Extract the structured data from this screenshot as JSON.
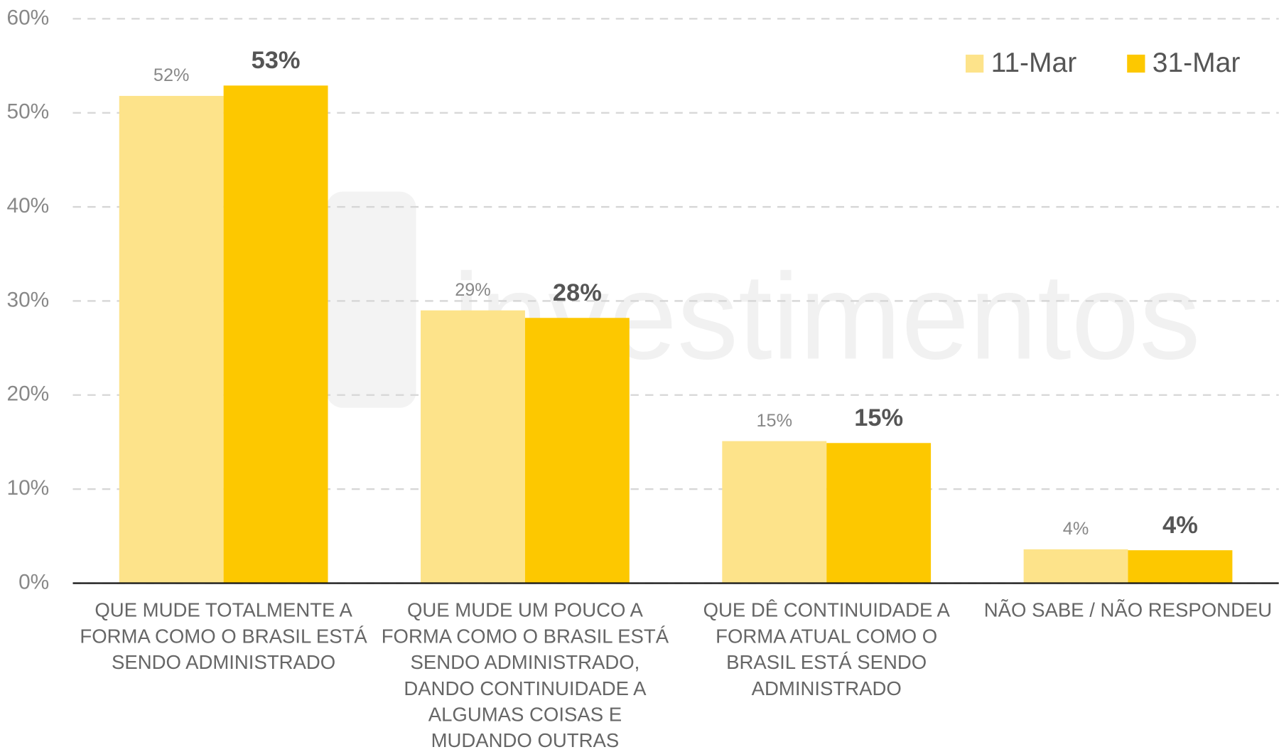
{
  "chart_data": {
    "type": "bar",
    "watermark": "investimentos",
    "categories": [
      "QUE MUDE TOTALMENTE A FORMA COMO O BRASIL ESTÁ SENDO ADMINISTRADO",
      "QUE MUDE UM POUCO A FORMA COMO O BRASIL ESTÁ SENDO ADMINISTRADO, DANDO CONTINUIDADE A ALGUMAS COISAS E MUDANDO OUTRAS",
      "QUE DÊ CONTINUIDADE A FORMA ATUAL COMO O BRASIL ESTÁ SENDO ADMINISTRADO",
      "NÃO SABE / NÃO RESPONDEU"
    ],
    "series": [
      {
        "name": "11-Mar",
        "color": "#fde38a",
        "values": [
          51.8,
          29.0,
          15.1,
          3.6
        ],
        "value_labels": [
          "52%",
          "29%",
          "15%",
          "4%"
        ]
      },
      {
        "name": "31-Mar",
        "color": "#fdc800",
        "values": [
          52.9,
          28.2,
          14.9,
          3.5
        ],
        "value_labels": [
          "53%",
          "28%",
          "15%",
          "4%"
        ]
      }
    ],
    "ylim": [
      0,
      60
    ],
    "yticks": [
      {
        "value": 0,
        "label": "0%"
      },
      {
        "value": 10,
        "label": "10%"
      },
      {
        "value": 20,
        "label": "20%"
      },
      {
        "value": 30,
        "label": "30%"
      },
      {
        "value": 40,
        "label": "40%"
      },
      {
        "value": 50,
        "label": "50%"
      },
      {
        "value": 60,
        "label": "60%"
      }
    ],
    "grid": true,
    "legend": "top-right"
  }
}
